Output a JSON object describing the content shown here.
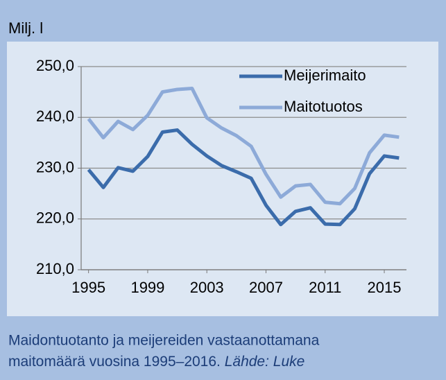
{
  "chart_data": {
    "type": "line",
    "unit_label": "Milj. l",
    "x": [
      1995,
      1996,
      1997,
      1998,
      1999,
      2000,
      2001,
      2002,
      2003,
      2004,
      2005,
      2006,
      2007,
      2008,
      2009,
      2010,
      2011,
      2012,
      2013,
      2014,
      2015,
      2016
    ],
    "series": [
      {
        "name": "Meijerimaito",
        "color": "#3b6cab",
        "values": [
          229.7,
          226.2,
          230.1,
          229.4,
          232.3,
          237.1,
          237.5,
          234.7,
          232.4,
          230.5,
          229.3,
          228.0,
          222.7,
          218.9,
          221.5,
          222.2,
          219.0,
          218.9,
          222.0,
          228.9,
          232.4,
          232.0
        ]
      },
      {
        "name": "Maitotuotos",
        "color": "#8daad8",
        "values": [
          239.7,
          236.0,
          239.2,
          237.6,
          240.4,
          245.0,
          245.5,
          245.7,
          239.9,
          237.9,
          236.4,
          234.3,
          228.8,
          224.3,
          226.5,
          226.8,
          223.3,
          223.0,
          226.0,
          233.0,
          236.5,
          236.1
        ]
      }
    ],
    "xlim": [
      1994.5,
      2016.5
    ],
    "xticks": [
      1995,
      1999,
      2003,
      2007,
      2011,
      2015
    ],
    "ylim": [
      210,
      250
    ],
    "yticks": [
      {
        "value": 210,
        "label": "210,0"
      },
      {
        "value": 220,
        "label": "220,0"
      },
      {
        "value": 230,
        "label": "230,0"
      },
      {
        "value": 240,
        "label": "240,0"
      },
      {
        "value": 250,
        "label": "250,0"
      }
    ],
    "grid": true,
    "legend": "top-right",
    "caption": [
      "Maidontuotanto ja meijereiden vastaanottamana",
      "maitomäärä vuosina 1995–2016."
    ],
    "source": "Lähde: Luke"
  }
}
